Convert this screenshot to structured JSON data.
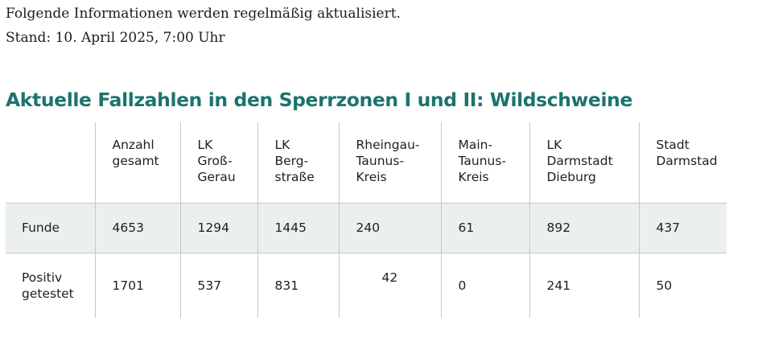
{
  "intro": {
    "line1": "Folgende Informationen werden regelmäßig aktualisiert.",
    "line2": "Stand: 10. April 2025, 7:00 Uhr"
  },
  "heading": "Aktuelle Fallzahlen in den Sperrzonen I und II: Wildschweine",
  "table": {
    "columns": [
      {
        "lines": [
          "",
          ""
        ]
      },
      {
        "lines": [
          "Anzahl",
          "gesamt"
        ]
      },
      {
        "lines": [
          "LK",
          "Groß-",
          "Gerau"
        ]
      },
      {
        "lines": [
          "LK",
          "Berg-",
          "straße"
        ]
      },
      {
        "lines": [
          "Rheingau-",
          "Taunus-",
          "Kreis"
        ]
      },
      {
        "lines": [
          "Main-",
          "Taunus-",
          "Kreis"
        ]
      },
      {
        "lines": [
          "LK",
          "Darmstadt",
          "Dieburg"
        ]
      },
      {
        "lines": [
          "Stadt",
          "Darmstad"
        ]
      }
    ],
    "rows": [
      {
        "label": [
          "Funde"
        ],
        "values": [
          "4653",
          "1294",
          "1445",
          "240",
          "61",
          "892",
          "437"
        ]
      },
      {
        "label": [
          "Positiv",
          "getestet"
        ],
        "values": [
          "1701",
          "537",
          "831",
          "42",
          "0",
          "241",
          "50"
        ]
      }
    ]
  }
}
